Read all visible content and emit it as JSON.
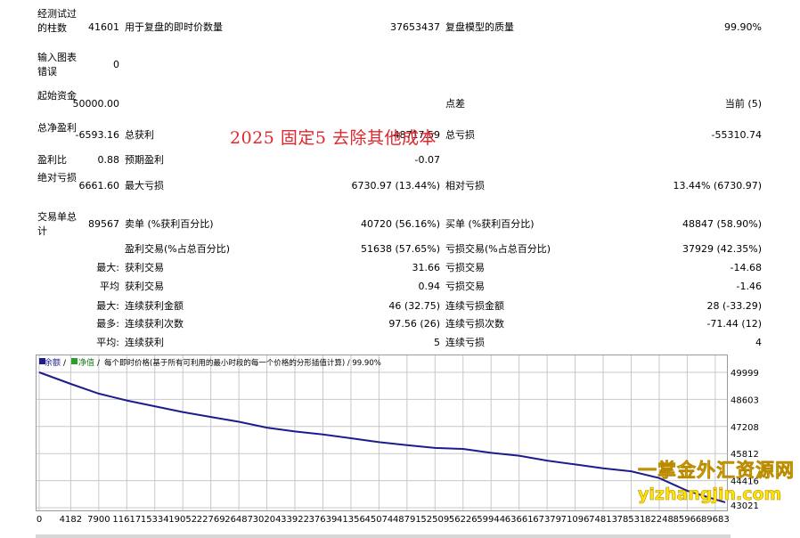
{
  "rows": {
    "bars_tested_label": "经测试过的柱数",
    "bars_tested_value": "41601",
    "ticks_label": "用于复盘的即时价数量",
    "ticks_value": "37653437",
    "quality_label": "复盘模型的质量",
    "quality_value": "99.90%",
    "mismatch_label": "输入图表错误",
    "mismatch_value": "0",
    "deposit_label": "起始资金",
    "deposit_value": "50000.00",
    "spread_label": "点差",
    "spread_value": "当前 (5)",
    "net_profit_label": "总净盈利",
    "net_profit_value": "-6593.16",
    "gross_profit_label": "总获利",
    "gross_profit_value": "48717.59",
    "gross_loss_label": "总亏损",
    "gross_loss_value": "-55310.74",
    "profit_factor_label": "盈利比",
    "profit_factor_value": "0.88",
    "expected_payoff_label": "预期盈利",
    "expected_payoff_value": "-0.07",
    "abs_dd_label": "绝对亏损",
    "abs_dd_value": "6661.60",
    "max_dd_label": "最大亏损",
    "max_dd_value": "6730.97 (13.44%)",
    "rel_dd_label": "相对亏损",
    "rel_dd_value": "13.44% (6730.97)",
    "total_trades_label": "交易单总计",
    "total_trades_value": "89567",
    "short_label": "卖单 (%获利百分比)",
    "short_value": "40720 (56.16%)",
    "long_label": "买单 (%获利百分比)",
    "long_value": "48847 (58.90%)",
    "win_trades_label": "盈利交易(%占总百分比)",
    "win_trades_value": "51638 (57.65%)",
    "loss_trades_label": "亏损交易(%占总百分比)",
    "loss_trades_value": "37929 (42.35%)",
    "largest_prefix": "最大:",
    "largest_win_label": "获利交易",
    "largest_win_value": "31.66",
    "largest_loss_label": "亏损交易",
    "largest_loss_value": "-14.68",
    "average_prefix": "平均",
    "avg_win_label": "获利交易",
    "avg_win_value": "0.94",
    "avg_loss_label": "亏损交易",
    "avg_loss_value": "-1.46",
    "max_prefix": "最大:",
    "max_cons_win_label": "连续获利金额",
    "max_cons_win_value": "46 (32.75)",
    "max_cons_loss_label": "连续亏损金额",
    "max_cons_loss_value": "28 (-33.29)",
    "most_prefix": "最多:",
    "most_cons_win_label": "连续获利次数",
    "most_cons_win_value": "97.56 (26)",
    "most_cons_loss_label": "连续亏损次数",
    "most_cons_loss_value": "-71.44 (12)",
    "avg_cons_prefix": "平均:",
    "avg_cons_win_label": "连续获利",
    "avg_cons_win_value": "5",
    "avg_cons_loss_label": "连续亏损",
    "avg_cons_loss_value": "4"
  },
  "overlay_text": "2025  固定5  去除其他成本",
  "watermark": {
    "line1": "一掌金外汇资源网",
    "line2": "yizhangjin.com"
  },
  "legend": {
    "balance": "余额",
    "equity": "净值",
    "description": "每个即时价格(基于所有可利用的最小时段的每一个价格的分形插值计算) / 99.90%"
  },
  "colors": {
    "balance_line": "#1c1c8c",
    "overlay": "#e0272d",
    "grid": "#c8c8c8",
    "watermark": "#ffe600"
  },
  "chart_data": {
    "type": "line",
    "series": [
      {
        "name": "余额",
        "x": [
          0,
          4182,
          7900,
          11617,
          15334,
          19052,
          22769,
          26487,
          30204,
          33922,
          37639,
          41356,
          45074,
          48791,
          52509,
          56226,
          59944,
          63661,
          67379,
          71096,
          74813,
          78531,
          82248,
          85966,
          89683,
          91000
        ],
        "values": [
          50000,
          49400,
          48900,
          48550,
          48250,
          47950,
          47700,
          47450,
          47150,
          46950,
          46800,
          46600,
          46400,
          46250,
          46100,
          46050,
          45850,
          45700,
          45450,
          45250,
          45050,
          44900,
          44550,
          43900,
          43450,
          43300
        ]
      }
    ],
    "x_ticks": [
      "0",
      "4182",
      "7900",
      "11617",
      "15334",
      "19052",
      "22769",
      "26487",
      "30204",
      "33922",
      "37639",
      "41356",
      "45074",
      "48791",
      "52509",
      "56226",
      "59944",
      "63661",
      "67379",
      "71096",
      "74813",
      "78531",
      "82248",
      "85966",
      "89683"
    ],
    "y_ticks": [
      "49999",
      "48603",
      "47208",
      "45812",
      "44416",
      "43021"
    ],
    "ylim": [
      43021,
      49999
    ],
    "xlim": [
      0,
      91000
    ],
    "grid": true
  }
}
